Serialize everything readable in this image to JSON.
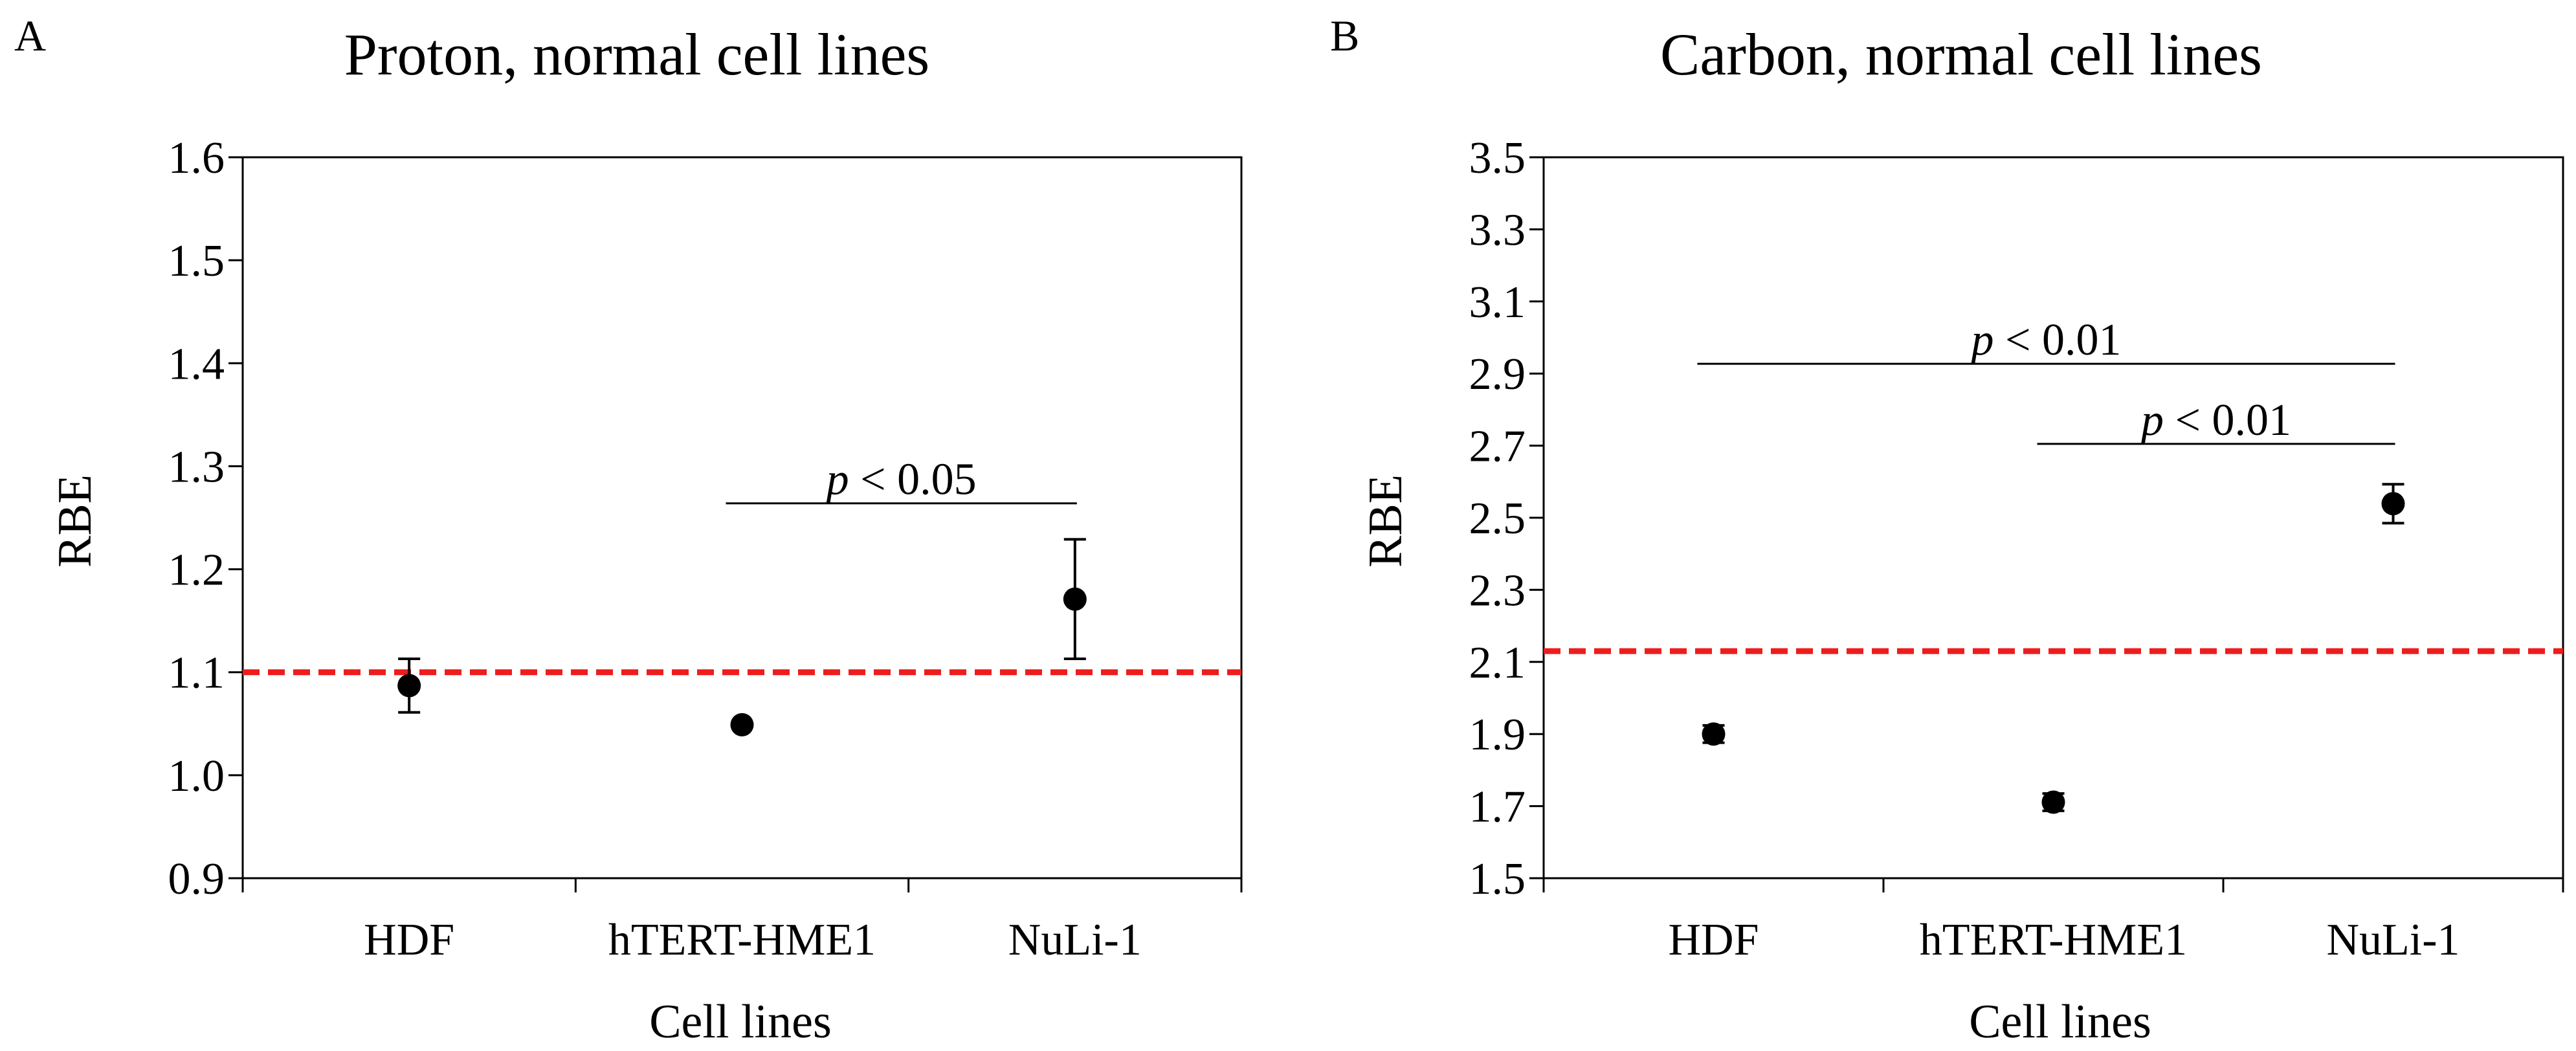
{
  "colors": {
    "marker": "#000000",
    "reference_line": "#ee1c1c",
    "axis": "#000000"
  },
  "chart_data": [
    {
      "type": "scatter",
      "panel_label": "A",
      "title": "Proton, normal cell lines",
      "xlabel": "Cell lines",
      "ylabel": "RBE",
      "categories": [
        "HDF",
        "hTERT-HME1",
        "NuLi-1"
      ],
      "ylim": [
        0.9,
        1.6
      ],
      "yticks": [
        "0.9",
        "1.0",
        "1.1",
        "1.2",
        "1.3",
        "1.4",
        "1.5",
        "1.6"
      ],
      "values": [
        1.087,
        1.049,
        1.171
      ],
      "error": [
        0.026,
        0.0,
        0.058
      ],
      "reference_line": 1.1,
      "annotations": [
        {
          "p_symbol": "p",
          "text": " < 0.05",
          "from_index": 1,
          "to_index": 2,
          "y": 1.264
        }
      ]
    },
    {
      "type": "scatter",
      "panel_label": "B",
      "title": "Carbon, normal cell lines",
      "xlabel": "Cell lines",
      "ylabel": "RBE",
      "categories": [
        "HDF",
        "hTERT-HME1",
        "NuLi-1"
      ],
      "ylim": [
        1.5,
        3.5
      ],
      "yticks": [
        "1.5",
        "1.7",
        "1.9",
        "2.1",
        "2.3",
        "2.5",
        "2.7",
        "2.9",
        "3.1",
        "3.3",
        "3.5"
      ],
      "values": [
        1.9,
        1.711,
        2.539
      ],
      "error": [
        0.024,
        0.024,
        0.054
      ],
      "reference_line": 2.13,
      "annotations": [
        {
          "p_symbol": "p",
          "text": " < 0.01",
          "from_index": 0,
          "to_index": 2,
          "y": 2.927
        },
        {
          "p_symbol": "p",
          "text": " < 0.01",
          "from_index": 1,
          "to_index": 2,
          "y": 2.705
        }
      ]
    }
  ]
}
